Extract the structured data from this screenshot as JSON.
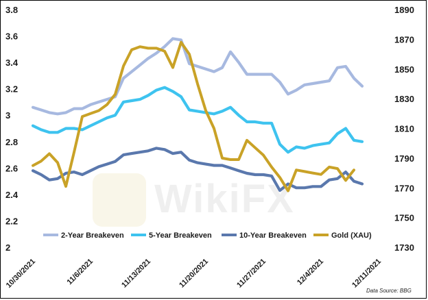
{
  "chart_data": {
    "type": "line",
    "x": [
      "10/30/2021",
      "10/31/2021",
      "11/1/2021",
      "11/2/2021",
      "11/3/2021",
      "11/4/2021",
      "11/5/2021",
      "11/6/2021",
      "11/7/2021",
      "11/8/2021",
      "11/9/2021",
      "11/10/2021",
      "11/11/2021",
      "11/12/2021",
      "11/13/2021",
      "11/14/2021",
      "11/15/2021",
      "11/16/2021",
      "11/17/2021",
      "11/18/2021",
      "11/19/2021",
      "11/20/2021",
      "11/21/2021",
      "11/22/2021",
      "11/23/2021",
      "11/24/2021",
      "11/25/2021",
      "11/26/2021",
      "11/27/2021",
      "11/28/2021",
      "11/29/2021",
      "11/30/2021",
      "12/1/2021",
      "12/2/2021",
      "12/3/2021",
      "12/4/2021",
      "12/5/2021",
      "12/6/2021",
      "12/7/2021",
      "12/8/2021",
      "12/9/2021",
      "12/10/2021",
      "12/11/2021"
    ],
    "x_tick_labels": [
      "10/30/2021",
      "11/6/2021",
      "11/13/2021",
      "11/20/2021",
      "11/27/2021",
      "12/4/2021",
      "12/11/2021"
    ],
    "y_left": {
      "ticks": [
        "2",
        "2.2",
        "2.4",
        "2.6",
        "2.8",
        "3",
        "3.2",
        "3.4",
        "3.6",
        "3.8"
      ],
      "range": [
        2,
        3.8
      ]
    },
    "y_right": {
      "ticks": [
        "1730",
        "1750",
        "1770",
        "1790",
        "1810",
        "1830",
        "1850",
        "1870",
        "1890"
      ],
      "range": [
        1730,
        1890
      ]
    },
    "series": [
      {
        "name": "2-Year Breakeven",
        "axis": "left",
        "color": "#a7b9e0",
        "values": [
          3.06,
          3.04,
          3.02,
          3.01,
          3.02,
          3.05,
          3.05,
          3.08,
          3.1,
          3.12,
          3.14,
          3.28,
          3.33,
          3.38,
          3.43,
          3.47,
          3.52,
          3.58,
          3.57,
          3.39,
          3.37,
          3.35,
          3.33,
          3.36,
          3.48,
          3.4,
          3.31,
          3.31,
          3.31,
          3.31,
          3.25,
          3.16,
          3.19,
          3.23,
          3.24,
          3.25,
          3.26,
          3.36,
          3.37,
          3.28,
          3.22,
          null,
          null
        ]
      },
      {
        "name": "5-Year Breakeven",
        "axis": "left",
        "color": "#3ec3ef",
        "values": [
          2.92,
          2.89,
          2.87,
          2.87,
          2.9,
          2.9,
          2.89,
          2.92,
          2.95,
          2.98,
          3.0,
          3.1,
          3.11,
          3.12,
          3.15,
          3.19,
          3.21,
          3.18,
          3.14,
          3.04,
          3.03,
          3.02,
          3.01,
          3.03,
          3.06,
          3.0,
          2.95,
          2.95,
          2.94,
          2.94,
          2.78,
          2.72,
          2.76,
          2.75,
          2.77,
          2.78,
          2.79,
          2.86,
          2.9,
          2.81,
          2.8,
          null,
          null
        ]
      },
      {
        "name": "10-Year Breakeven",
        "axis": "left",
        "color": "#5a78ad",
        "values": [
          2.58,
          2.55,
          2.51,
          2.52,
          2.56,
          2.57,
          2.55,
          2.58,
          2.61,
          2.63,
          2.65,
          2.7,
          2.71,
          2.72,
          2.73,
          2.75,
          2.74,
          2.71,
          2.72,
          2.66,
          2.64,
          2.63,
          2.62,
          2.62,
          2.6,
          2.58,
          2.56,
          2.55,
          2.55,
          2.54,
          2.43,
          2.48,
          2.45,
          2.45,
          2.46,
          2.46,
          2.51,
          2.52,
          2.57,
          2.5,
          2.48,
          null,
          null
        ]
      },
      {
        "name": "Gold (XAU)",
        "axis": "right",
        "color": "#c9a227",
        "values": [
          1785,
          1788,
          1793,
          1787,
          1771,
          1794,
          1818,
          1820,
          1822,
          1826,
          1833,
          1852,
          1863,
          1865,
          1864,
          1864,
          1862,
          1851,
          1868,
          1860,
          1840,
          1822,
          1810,
          1790,
          1789,
          1789,
          1802,
          1797,
          1792,
          1784,
          1777,
          1768,
          1782,
          1781,
          1780,
          1779,
          1784,
          1783,
          1775,
          1782,
          null,
          null,
          null
        ]
      }
    ],
    "legend_placement": "bottom",
    "grid": false
  },
  "source_note": "Data Source: BBG",
  "watermark": "WikiFX"
}
